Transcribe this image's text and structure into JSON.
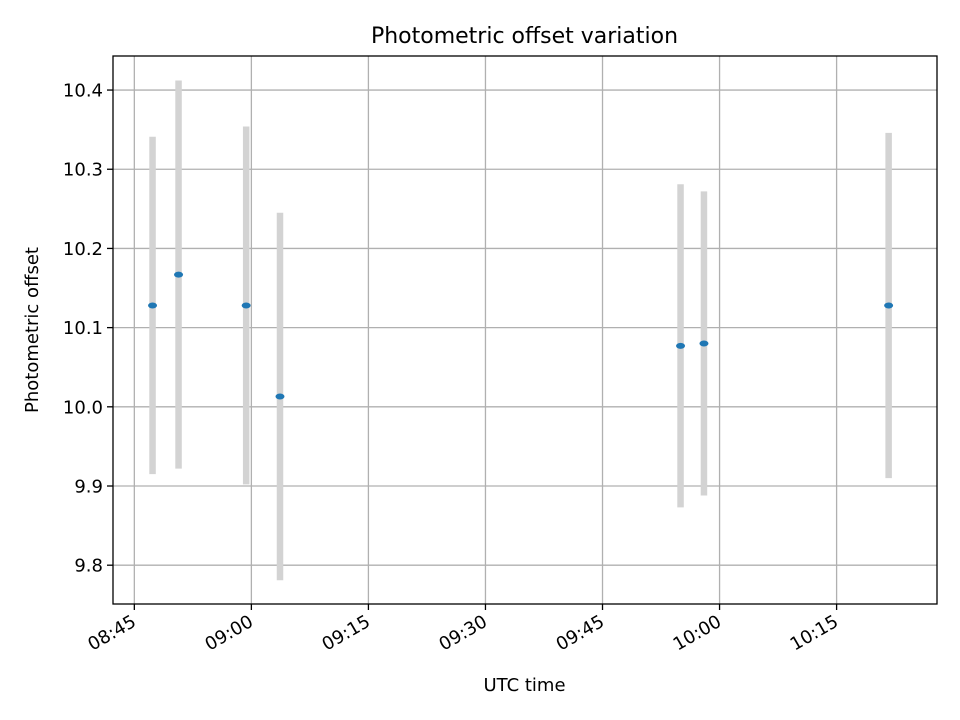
{
  "chart_data": {
    "type": "scatter",
    "title": "Photometric offset variation",
    "xlabel": "UTC time",
    "ylabel": "Photometric offset",
    "x_ticks": [
      "08:45",
      "09:00",
      "09:15",
      "09:30",
      "09:45",
      "10:00",
      "10:15"
    ],
    "y_ticks": [
      "9.8",
      "9.9",
      "10.0",
      "10.1",
      "10.2",
      "10.3",
      "10.4"
    ],
    "xlim": [
      "08:42:16",
      "10:27:52"
    ],
    "ylim": [
      9.751,
      10.443
    ],
    "grid": true,
    "legend": "none",
    "colors": {
      "point": "#1f77b4",
      "errorbar": "#d3d3d3",
      "grid": "#b0b0b0"
    },
    "points": [
      {
        "x": "08:47:20",
        "y": 10.128,
        "err": 0.213
      },
      {
        "x": "08:50:40",
        "y": 10.167,
        "err": 0.245
      },
      {
        "x": "08:59:20",
        "y": 10.128,
        "err": 0.226
      },
      {
        "x": "09:03:40",
        "y": 10.013,
        "err": 0.232
      },
      {
        "x": "09:55:00",
        "y": 10.077,
        "err": 0.204
      },
      {
        "x": "09:58:00",
        "y": 10.08,
        "err": 0.192
      },
      {
        "x": "10:21:40",
        "y": 10.128,
        "err": 0.218
      }
    ]
  }
}
